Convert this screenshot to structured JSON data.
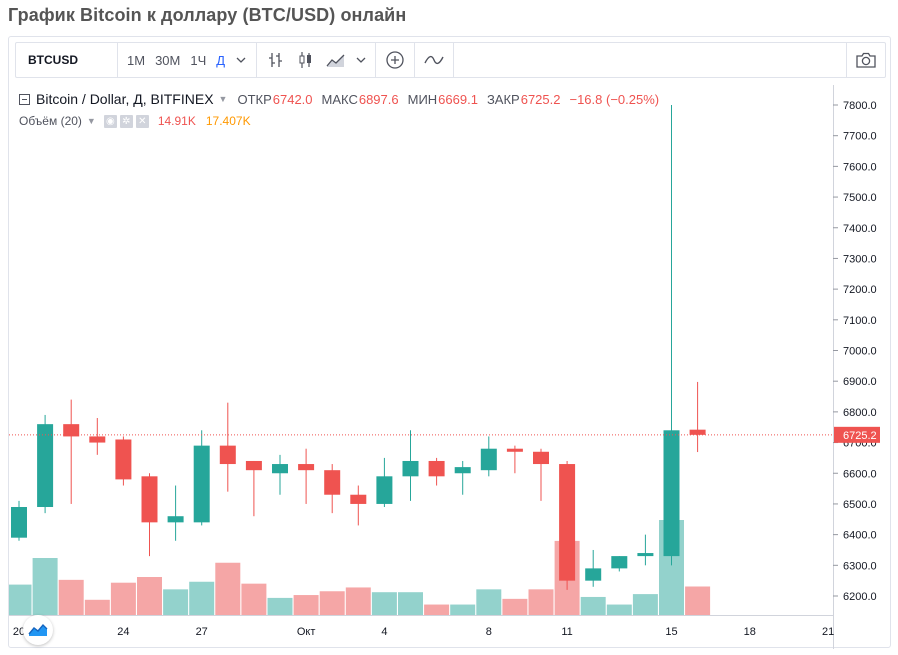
{
  "page_title": "График Bitcoin к доллару (BTC/USD) онлайн",
  "toolbar": {
    "symbol": "BTCUSD",
    "intervals": [
      {
        "label": "1М",
        "active": false
      },
      {
        "label": "30М",
        "active": false
      },
      {
        "label": "1Ч",
        "active": false
      },
      {
        "label": "Д",
        "active": true
      }
    ],
    "icons": [
      "chevron-down-icon",
      "bar-style-icon",
      "candle-style-icon",
      "area-style-icon",
      "compare-icon",
      "indicators-icon",
      "camera-icon"
    ]
  },
  "legend": {
    "title": "Bitcoin / Dollar, Д, BITFINEX",
    "open_label": "ОТКР",
    "open_value": "6742.0",
    "high_label": "МАКС",
    "high_value": "6897.6",
    "low_label": "МИН",
    "low_value": "6669.1",
    "close_label": "ЗАКР",
    "close_value": "6725.2",
    "change": "−16.8 (−0.25%)"
  },
  "volume_legend": {
    "title": "Объём (20)",
    "value1": "14.91K",
    "value2": "17.407K"
  },
  "colors": {
    "up": "#26a69a",
    "down": "#ef5350",
    "vol_up": "#93d2cc",
    "vol_down": "#f5a6a6",
    "accent": "#2962ff"
  },
  "chart_data": {
    "type": "candlestick",
    "symbol": "BTC/USD",
    "price_axis": {
      "ticks": [
        "7800.0",
        "7700.0",
        "7600.0",
        "7500.0",
        "7400.0",
        "7300.0",
        "7200.0",
        "7100.0",
        "7000.0",
        "6900.0",
        "6800.0",
        "6700.0",
        "6600.0",
        "6500.0",
        "6400.0",
        "6300.0",
        "6200.0"
      ],
      "last_price": "6725.2"
    },
    "time_axis": {
      "ticks": [
        {
          "i": 0,
          "label": "20"
        },
        {
          "i": 4,
          "label": "24"
        },
        {
          "i": 7,
          "label": "27"
        },
        {
          "i": 11,
          "label": "Окт"
        },
        {
          "i": 14,
          "label": "4"
        },
        {
          "i": 18,
          "label": "8"
        },
        {
          "i": 21,
          "label": "11"
        },
        {
          "i": 25,
          "label": "15"
        },
        {
          "i": 28,
          "label": "18"
        },
        {
          "i": 31,
          "label": "21"
        }
      ]
    },
    "candles": [
      {
        "o": 6390,
        "h": 6510,
        "l": 6380,
        "c": 6490
      },
      {
        "o": 6490,
        "h": 6790,
        "l": 6470,
        "c": 6760
      },
      {
        "o": 6760,
        "h": 6840,
        "l": 6500,
        "c": 6720
      },
      {
        "o": 6720,
        "h": 6780,
        "l": 6660,
        "c": 6700
      },
      {
        "o": 6710,
        "h": 6720,
        "l": 6560,
        "c": 6580
      },
      {
        "o": 6590,
        "h": 6600,
        "l": 6330,
        "c": 6440
      },
      {
        "o": 6440,
        "h": 6560,
        "l": 6380,
        "c": 6460
      },
      {
        "o": 6440,
        "h": 6740,
        "l": 6430,
        "c": 6690
      },
      {
        "o": 6690,
        "h": 6830,
        "l": 6540,
        "c": 6630
      },
      {
        "o": 6640,
        "h": 6640,
        "l": 6460,
        "c": 6610
      },
      {
        "o": 6600,
        "h": 6660,
        "l": 6530,
        "c": 6630
      },
      {
        "o": 6630,
        "h": 6680,
        "l": 6500,
        "c": 6610
      },
      {
        "o": 6610,
        "h": 6630,
        "l": 6470,
        "c": 6530
      },
      {
        "o": 6530,
        "h": 6560,
        "l": 6430,
        "c": 6500
      },
      {
        "o": 6500,
        "h": 6650,
        "l": 6490,
        "c": 6590
      },
      {
        "o": 6590,
        "h": 6740,
        "l": 6510,
        "c": 6640
      },
      {
        "o": 6640,
        "h": 6650,
        "l": 6560,
        "c": 6590
      },
      {
        "o": 6600,
        "h": 6640,
        "l": 6530,
        "c": 6620
      },
      {
        "o": 6610,
        "h": 6720,
        "l": 6590,
        "c": 6680
      },
      {
        "o": 6680,
        "h": 6690,
        "l": 6600,
        "c": 6670
      },
      {
        "o": 6670,
        "h": 6680,
        "l": 6510,
        "c": 6630
      },
      {
        "o": 6630,
        "h": 6640,
        "l": 6220,
        "c": 6250
      },
      {
        "o": 6250,
        "h": 6350,
        "l": 6230,
        "c": 6290
      },
      {
        "o": 6290,
        "h": 6330,
        "l": 6280,
        "c": 6330
      },
      {
        "o": 6330,
        "h": 6400,
        "l": 6300,
        "c": 6340
      },
      {
        "o": 6330,
        "h": 7800,
        "l": 6300,
        "c": 6740
      },
      {
        "o": 6742,
        "h": 6897.6,
        "l": 6669.1,
        "c": 6725.2
      }
    ],
    "volume_levels": [
      0.32,
      0.6,
      0.37,
      0.16,
      0.34,
      0.4,
      0.27,
      0.35,
      0.55,
      0.33,
      0.18,
      0.21,
      0.25,
      0.29,
      0.24,
      0.24,
      0.11,
      0.11,
      0.27,
      0.17,
      0.27,
      0.78,
      0.19,
      0.11,
      0.22,
      1.0,
      0.3
    ]
  }
}
